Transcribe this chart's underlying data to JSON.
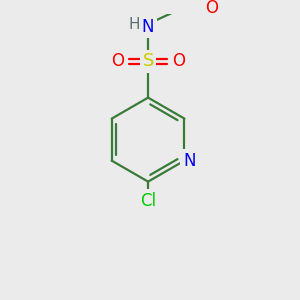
{
  "background_color": "#ebebeb",
  "bond_color": "#3a7a3a",
  "atom_colors": {
    "N_ring": "#0000ff",
    "N_amide": "#0000ff",
    "H": "#607070",
    "O": "#ff0000",
    "S": "#cccc00",
    "Cl": "#00cc00",
    "C": "#3a7a3a"
  },
  "figsize": [
    3.0,
    3.0
  ],
  "dpi": 100
}
